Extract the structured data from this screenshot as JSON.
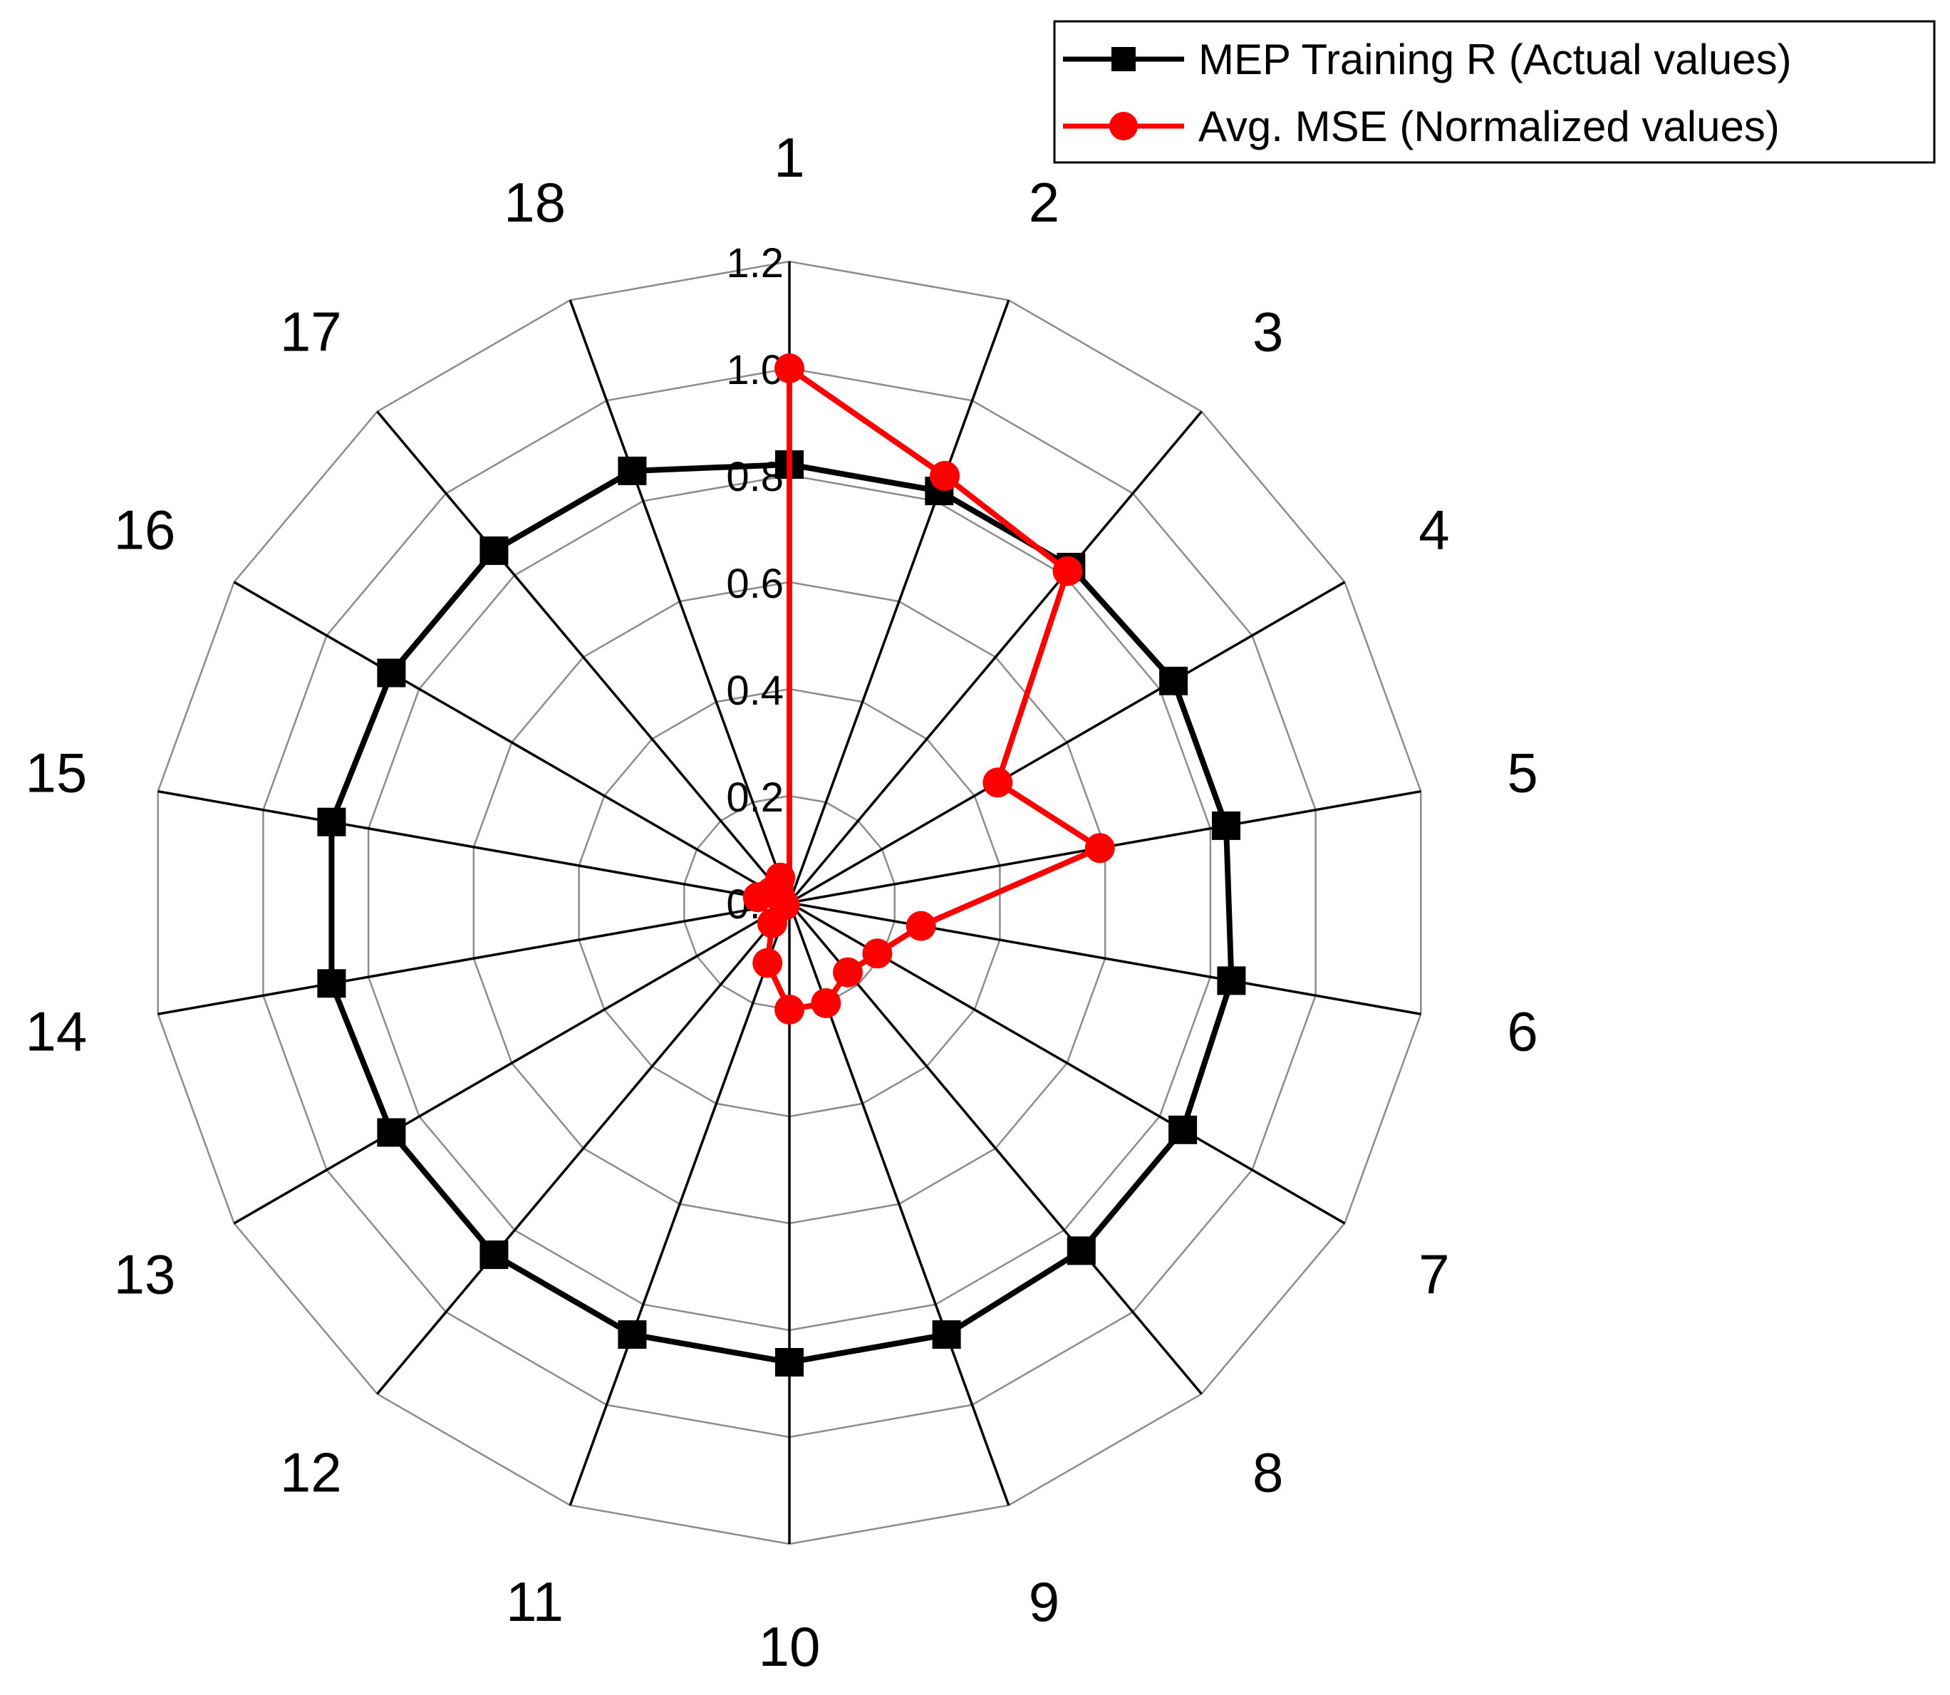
{
  "chart_data": {
    "type": "radar",
    "title": "",
    "categories": [
      "1",
      "2",
      "3",
      "4",
      "5",
      "6",
      "7",
      "8",
      "9",
      "10",
      "11",
      "12",
      "13",
      "14",
      "15",
      "16",
      "17",
      "18"
    ],
    "radial_ticks": [
      "0.0",
      "0.2",
      "0.4",
      "0.6",
      "0.8",
      "1.0",
      "1.2"
    ],
    "rlim": [
      0,
      1.2
    ],
    "grid": true,
    "legend_position": "top-right",
    "series": [
      {
        "name": "MEP Training R (Actual values)",
        "color": "#000000",
        "marker": "square",
        "values": [
          0.82,
          0.82,
          0.82,
          0.83,
          0.83,
          0.84,
          0.85,
          0.85,
          0.86,
          0.86,
          0.86,
          0.86,
          0.86,
          0.87,
          0.87,
          0.86,
          0.86,
          0.86
        ]
      },
      {
        "name": "Avg. MSE (Normalized values)",
        "color": "#ff0000",
        "marker": "circle",
        "values": [
          1.0,
          0.85,
          0.81,
          0.45,
          0.59,
          0.25,
          0.19,
          0.17,
          0.2,
          0.2,
          0.12,
          0.05,
          0.01,
          0.01,
          0.06,
          0.04,
          0.03,
          0.05
        ]
      }
    ]
  }
}
